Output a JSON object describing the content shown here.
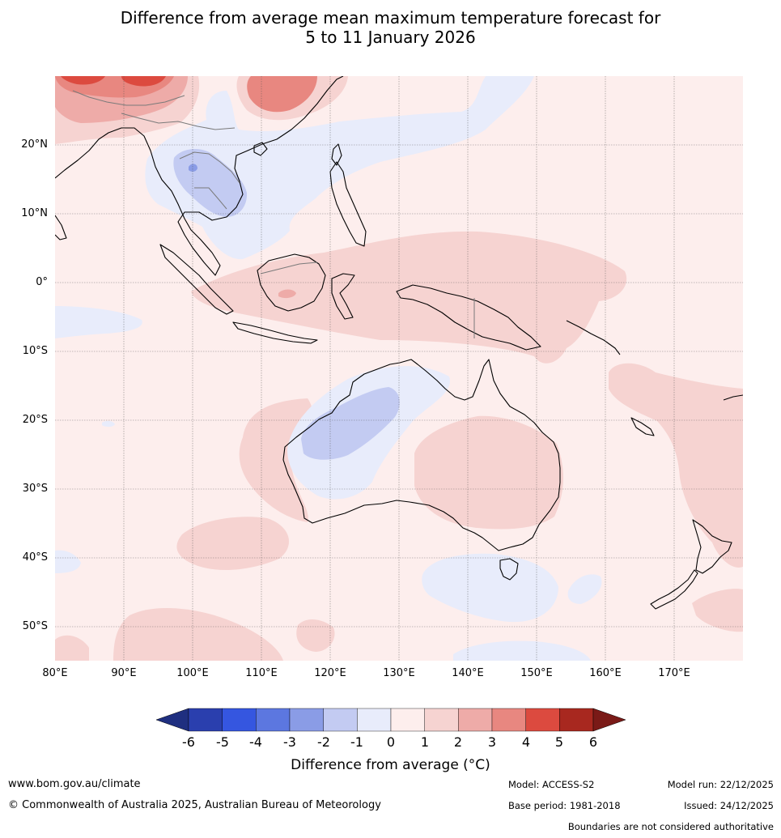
{
  "title_line1": "Difference from average mean maximum temperature forecast for",
  "title_line2": "5 to 11 January 2026",
  "map": {
    "lon_range": [
      80,
      180
    ],
    "lat_range": [
      -55,
      30
    ],
    "lat_ticks": [
      {
        "value": 20,
        "label": "20°N"
      },
      {
        "value": 10,
        "label": "10°N"
      },
      {
        "value": 0,
        "label": "0°"
      },
      {
        "value": -10,
        "label": "10°S"
      },
      {
        "value": -20,
        "label": "20°S"
      },
      {
        "value": -30,
        "label": "30°S"
      },
      {
        "value": -40,
        "label": "40°S"
      },
      {
        "value": -50,
        "label": "50°S"
      }
    ],
    "lon_ticks": [
      {
        "value": 80,
        "label": "80°E"
      },
      {
        "value": 90,
        "label": "90°E"
      },
      {
        "value": 100,
        "label": "100°E"
      },
      {
        "value": 110,
        "label": "110°E"
      },
      {
        "value": 120,
        "label": "120°E"
      },
      {
        "value": 130,
        "label": "130°E"
      },
      {
        "value": 140,
        "label": "140°E"
      },
      {
        "value": 150,
        "label": "150°E"
      },
      {
        "value": 160,
        "label": "160°E"
      },
      {
        "value": 170,
        "label": "170°E"
      }
    ]
  },
  "colorbar": {
    "levels": [
      "-6",
      "-5",
      "-4",
      "-3",
      "-2",
      "-1",
      "0",
      "1",
      "2",
      "3",
      "4",
      "5",
      "6"
    ],
    "colors": [
      "#2a3fae",
      "#3556e0",
      "#5c77e0",
      "#8a9ce6",
      "#c3cbf2",
      "#e8ecfb",
      "#fdeeed",
      "#f6d3d1",
      "#eeaba8",
      "#e88780",
      "#dc4a3f",
      "#a8281f"
    ],
    "under_color": "#1f2f80",
    "over_color": "#7a1a17",
    "title": "Difference from average (°C)"
  },
  "colors": {
    "base": "#fdeeed",
    "light_red": "#f6d3d1",
    "mid_red": "#eeaba8",
    "red": "#e88780",
    "strong_red": "#dc4a3f",
    "deep_red": "#a8281f",
    "light_blue": "#e8ecfb",
    "blue": "#c3cbf2",
    "mid_blue": "#8a9ce6"
  },
  "footer": {
    "website": "www.bom.gov.au/climate",
    "copyright": "© Commonwealth of Australia 2025, Australian Bureau of Meteorology",
    "model": "Model: ACCESS-S2",
    "base_period": "Base period: 1981-2018",
    "model_run": "Model run: 22/12/2025",
    "issued": "Issued: 24/12/2025",
    "disclaimer": "Boundaries are not considered authoritative"
  }
}
